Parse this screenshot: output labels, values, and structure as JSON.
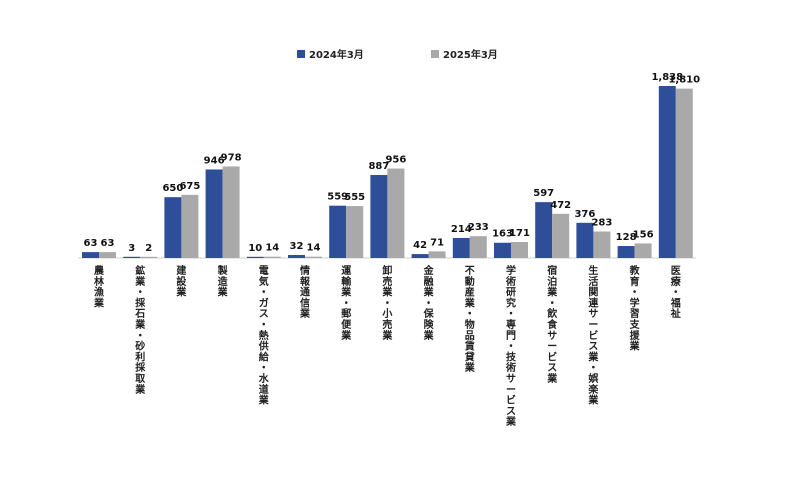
{
  "chart_data": {
    "type": "bar",
    "title": "",
    "xlabel": "",
    "ylabel": "",
    "ylim": [
      0,
      2000
    ],
    "grid": false,
    "legend_position": "top-center",
    "colors": {
      "2024": "#2e4e9a",
      "2025": "#a9a9a9"
    },
    "categories": [
      "農林漁業",
      "鉱業・採石業・砂利採取業",
      "建設業",
      "製造業",
      "電気・ガス・熱供給・水道業",
      "情報通信業",
      "運輸業・郵便業",
      "卸売業・小売業",
      "金融業・保険業",
      "不動産業・物品賃貸業",
      "学術研究・専門・技術サービス業",
      "宿泊業・飲食サービス業",
      "生活関連サービス業・娯楽業",
      "教育・学習支援業",
      "医療・福祉"
    ],
    "series": [
      {
        "name": "2024年3月",
        "values": [
          63,
          3,
          650,
          946,
          10,
          32,
          559,
          887,
          42,
          214,
          163,
          597,
          376,
          128,
          1838
        ],
        "labels": [
          "63",
          "3",
          "650",
          "946",
          "10",
          "32",
          "559",
          "887",
          "42",
          "214",
          "163",
          "597",
          "376",
          "128",
          "1,838"
        ]
      },
      {
        "name": "2025年3月",
        "values": [
          63,
          2,
          675,
          978,
          14,
          14,
          555,
          956,
          71,
          233,
          171,
          472,
          283,
          156,
          1810
        ],
        "labels": [
          "63",
          "2",
          "675",
          "978",
          "14",
          "14",
          "555",
          "956",
          "71",
          "233",
          "171",
          "472",
          "283",
          "156",
          "1,810"
        ]
      }
    ]
  }
}
